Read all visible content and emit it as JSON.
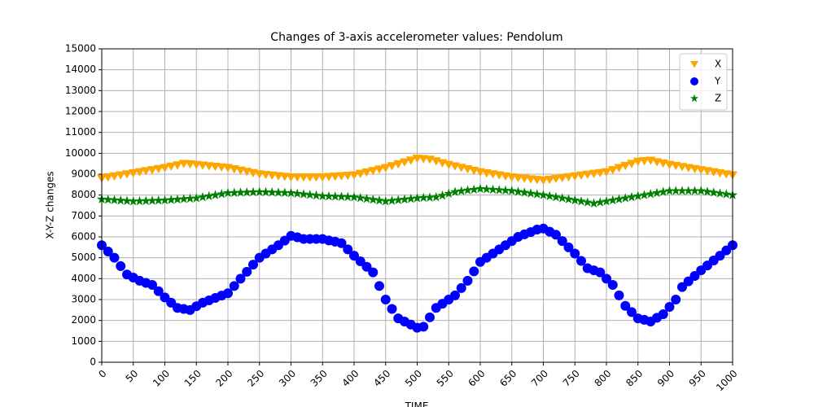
{
  "chart_data": {
    "type": "scatter",
    "title": "Changes of 3-axis accelerometer values: Pendolum",
    "x_label": "TIME",
    "y_label": "X-Y-Z changes",
    "x": [
      0,
      10,
      20,
      30,
      40,
      50,
      60,
      70,
      80,
      90,
      100,
      110,
      120,
      130,
      140,
      150,
      160,
      170,
      180,
      190,
      200,
      210,
      220,
      230,
      240,
      250,
      260,
      270,
      280,
      290,
      300,
      310,
      320,
      330,
      340,
      350,
      360,
      370,
      380,
      390,
      400,
      410,
      420,
      430,
      440,
      450,
      460,
      470,
      480,
      490,
      500,
      510,
      520,
      530,
      540,
      550,
      560,
      570,
      580,
      590,
      600,
      610,
      620,
      630,
      640,
      650,
      660,
      670,
      680,
      690,
      700,
      710,
      720,
      730,
      740,
      750,
      760,
      770,
      780,
      790,
      800,
      810,
      820,
      830,
      840,
      850,
      860,
      870,
      880,
      890,
      900,
      910,
      920,
      930,
      940,
      950,
      960,
      970,
      980,
      990,
      1000
    ],
    "series": [
      {
        "name": "X",
        "color": "#ffa500",
        "marker": "triangle-down",
        "values": [
          8800,
          8850,
          8900,
          8950,
          9000,
          9050,
          9100,
          9150,
          9200,
          9250,
          9300,
          9370,
          9430,
          9500,
          9480,
          9450,
          9420,
          9390,
          9360,
          9330,
          9300,
          9240,
          9180,
          9120,
          9060,
          9000,
          8970,
          8940,
          8910,
          8880,
          8850,
          8850,
          8850,
          8850,
          8850,
          8850,
          8870,
          8890,
          8910,
          8930,
          8950,
          9020,
          9090,
          9160,
          9230,
          9300,
          9390,
          9480,
          9570,
          9660,
          9750,
          9730,
          9700,
          9620,
          9530,
          9450,
          9380,
          9310,
          9240,
          9170,
          9100,
          9050,
          9000,
          8950,
          8900,
          8850,
          8820,
          8790,
          8760,
          8730,
          8700,
          8740,
          8780,
          8820,
          8860,
          8900,
          8940,
          8980,
          9020,
          9060,
          9100,
          9200,
          9300,
          9400,
          9500,
          9600,
          9630,
          9650,
          9580,
          9520,
          9450,
          9400,
          9350,
          9300,
          9250,
          9200,
          9150,
          9100,
          9050,
          9000,
          8950
        ]
      },
      {
        "name": "Y",
        "color": "#0000ff",
        "marker": "circle",
        "values": [
          5600,
          5300,
          5000,
          4600,
          4200,
          4050,
          3900,
          3800,
          3700,
          3400,
          3100,
          2850,
          2600,
          2550,
          2500,
          2680,
          2850,
          2960,
          3080,
          3190,
          3300,
          3650,
          4000,
          4330,
          4670,
          5000,
          5200,
          5400,
          5600,
          5820,
          6050,
          5980,
          5900,
          5900,
          5900,
          5900,
          5830,
          5770,
          5700,
          5400,
          5100,
          4830,
          4570,
          4300,
          3650,
          3000,
          2550,
          2100,
          1950,
          1800,
          1650,
          1700,
          2150,
          2600,
          2800,
          3000,
          3200,
          3550,
          3900,
          4350,
          4800,
          5000,
          5200,
          5400,
          5600,
          5800,
          6000,
          6120,
          6230,
          6350,
          6400,
          6250,
          6100,
          5800,
          5500,
          5200,
          4850,
          4500,
          4400,
          4300,
          4000,
          3700,
          3200,
          2700,
          2400,
          2100,
          2030,
          1950,
          2130,
          2300,
          2650,
          3000,
          3600,
          3870,
          4130,
          4400,
          4630,
          4870,
          5100,
          5350,
          5600
        ]
      },
      {
        "name": "Z",
        "color": "#008000",
        "marker": "star",
        "values": [
          7800,
          7780,
          7760,
          7740,
          7720,
          7700,
          7710,
          7720,
          7730,
          7740,
          7750,
          7770,
          7790,
          7810,
          7830,
          7850,
          7900,
          7950,
          8000,
          8050,
          8100,
          8110,
          8120,
          8130,
          8140,
          8150,
          8140,
          8130,
          8120,
          8110,
          8100,
          8070,
          8040,
          8010,
          7980,
          7950,
          7940,
          7930,
          7920,
          7910,
          7900,
          7860,
          7820,
          7780,
          7740,
          7700,
          7730,
          7760,
          7790,
          7820,
          7850,
          7870,
          7880,
          7900,
          7980,
          8070,
          8150,
          8190,
          8230,
          8260,
          8300,
          8280,
          8260,
          8240,
          8220,
          8200,
          8160,
          8120,
          8080,
          8040,
          8000,
          7950,
          7900,
          7850,
          7800,
          7750,
          7700,
          7650,
          7600,
          7650,
          7700,
          7750,
          7800,
          7850,
          7900,
          7950,
          8000,
          8050,
          8100,
          8150,
          8200,
          8200,
          8200,
          8200,
          8200,
          8200,
          8160,
          8120,
          8080,
          8040,
          8000
        ]
      }
    ],
    "xlim": [
      0,
      1000
    ],
    "xticks": [
      0,
      50,
      100,
      150,
      200,
      250,
      300,
      350,
      400,
      450,
      500,
      550,
      600,
      650,
      700,
      750,
      800,
      850,
      900,
      950,
      1000
    ],
    "ylim": [
      0,
      15000
    ],
    "yticks": [
      0,
      1000,
      2000,
      3000,
      4000,
      5000,
      6000,
      7000,
      8000,
      9000,
      10000,
      11000,
      12000,
      13000,
      14000,
      15000
    ],
    "grid": true,
    "legend": "upper right"
  }
}
